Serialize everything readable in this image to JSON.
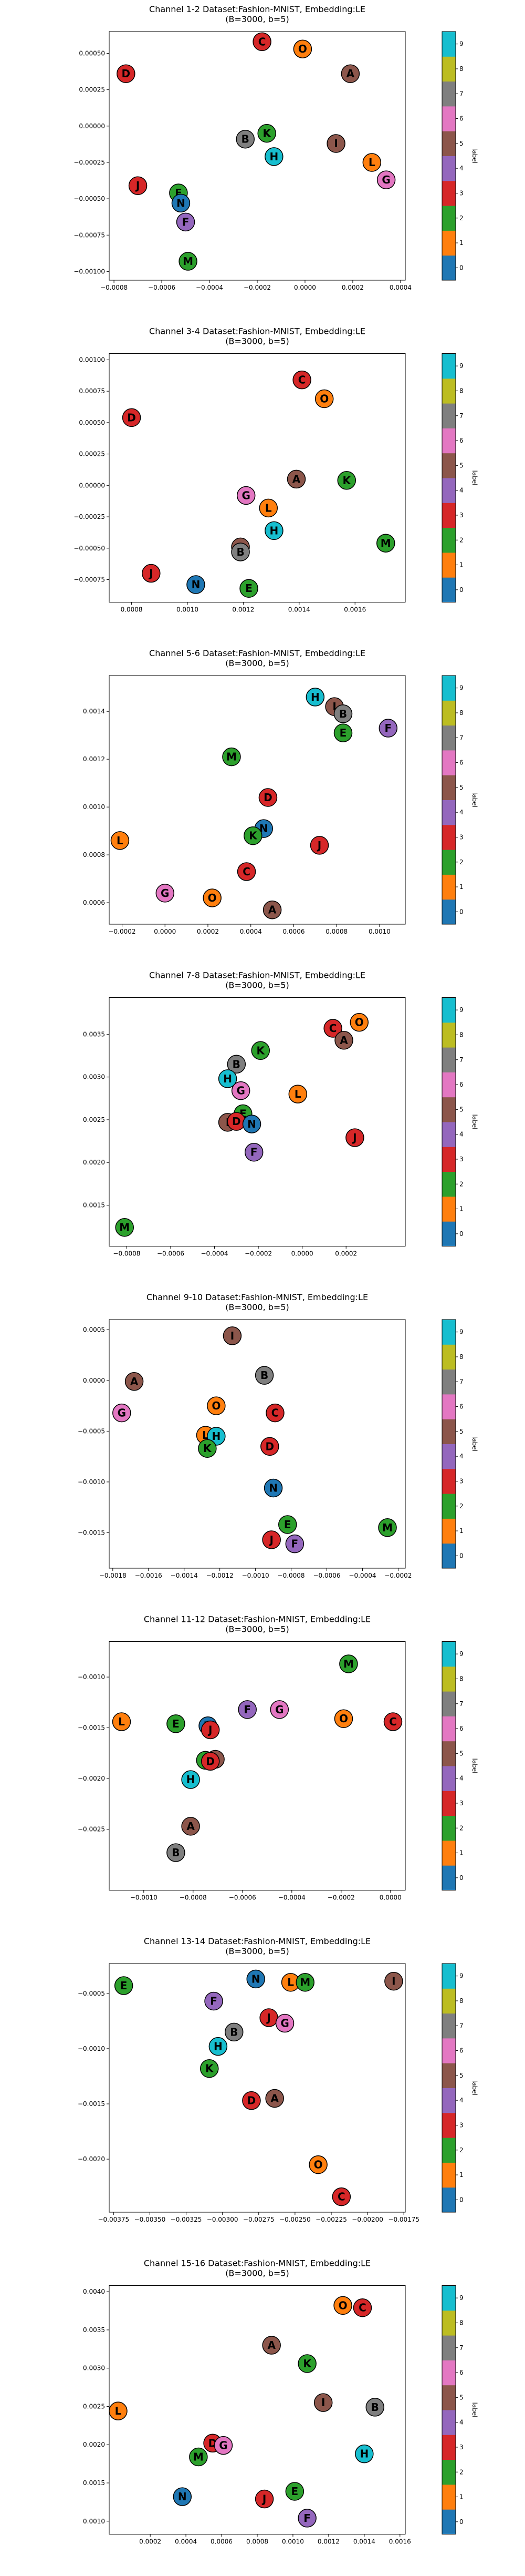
{
  "colormap": [
    "#1f77b4",
    "#ff7f0e",
    "#2ca02c",
    "#d62728",
    "#9467bd",
    "#8c564b",
    "#e377c2",
    "#7f7f7f",
    "#bcbd22",
    "#17becf"
  ],
  "colorbar": {
    "label": "label",
    "ticks": [
      "0",
      "1",
      "2",
      "3",
      "4",
      "5",
      "6",
      "7",
      "8",
      "9"
    ]
  },
  "letter_class": {
    "L": 1,
    "E": 2,
    "M": 2,
    "K": 2,
    "D": 3,
    "C": 3,
    "J": 3,
    "F": 4,
    "N": 0,
    "A": 5,
    "I": 5,
    "G": 6,
    "B": 7,
    "H": 9,
    "O": 1
  },
  "chart_data": [
    {
      "type": "scatter",
      "title": [
        "Channel 1-2 Dataset:Fashion-MNIST, Embedding:LE",
        "(B=3000, b=5)"
      ],
      "xlim": [
        -0.00082,
        0.00042
      ],
      "ylim": [
        -0.00106,
        0.00065
      ],
      "xticks": [
        -0.0008,
        -0.0006,
        -0.0004,
        -0.0002,
        0.0,
        0.0002,
        0.0004
      ],
      "xtick_labels": [
        "−0.0008",
        "−0.0006",
        "−0.0004",
        "−0.0002",
        "0.0000",
        "0.0002",
        "0.0004"
      ],
      "yticks": [
        -0.001,
        -0.00075,
        -0.0005,
        -0.00025,
        0.0,
        0.00025,
        0.0005
      ],
      "ytick_labels": [
        "−0.00100",
        "−0.00075",
        "−0.00050",
        "−0.00025",
        "0.00000",
        "0.00025",
        "0.00050"
      ],
      "points": [
        {
          "label": "C",
          "x": -0.00018,
          "y": 0.00058
        },
        {
          "label": "O",
          "x": -1e-05,
          "y": 0.00053
        },
        {
          "label": "A",
          "x": 0.00019,
          "y": 0.00036
        },
        {
          "label": "D",
          "x": -0.00075,
          "y": 0.00036
        },
        {
          "label": "B",
          "x": -0.00025,
          "y": -9e-05
        },
        {
          "label": "K",
          "x": -0.00016,
          "y": -5e-05
        },
        {
          "label": "I",
          "x": 0.00013,
          "y": -0.00012
        },
        {
          "label": "H",
          "x": -0.00013,
          "y": -0.00021
        },
        {
          "label": "L",
          "x": 0.00028,
          "y": -0.00025
        },
        {
          "label": "G",
          "x": 0.00034,
          "y": -0.00037
        },
        {
          "label": "J",
          "x": -0.0007,
          "y": -0.00041
        },
        {
          "label": "E",
          "x": -0.00053,
          "y": -0.00046
        },
        {
          "label": "N",
          "x": -0.00052,
          "y": -0.00053
        },
        {
          "label": "F",
          "x": -0.0005,
          "y": -0.00066
        },
        {
          "label": "M",
          "x": -0.00049,
          "y": -0.00093
        }
      ]
    },
    {
      "type": "scatter",
      "title": [
        "Channel 3-4 Dataset:Fashion-MNIST, Embedding:LE",
        "(B=3000, b=5)"
      ],
      "xlim": [
        0.00072,
        0.00178
      ],
      "ylim": [
        -0.00093,
        0.00105
      ],
      "xticks": [
        0.0008,
        0.001,
        0.0012,
        0.0014,
        0.0016
      ],
      "xtick_labels": [
        "0.0008",
        "0.0010",
        "0.0012",
        "0.0014",
        "0.0016"
      ],
      "yticks": [
        -0.00075,
        -0.0005,
        -0.00025,
        0.0,
        0.00025,
        0.0005,
        0.00075,
        0.001
      ],
      "ytick_labels": [
        "−0.00075",
        "−0.00050",
        "−0.00025",
        "0.00000",
        "0.00025",
        "0.00050",
        "0.00075",
        "0.00100"
      ],
      "points": [
        {
          "label": "C",
          "x": 0.00141,
          "y": 0.00084
        },
        {
          "label": "O",
          "x": 0.00149,
          "y": 0.00069
        },
        {
          "label": "D",
          "x": 0.0008,
          "y": 0.00054
        },
        {
          "label": "A",
          "x": 0.00139,
          "y": 5e-05
        },
        {
          "label": "K",
          "x": 0.00157,
          "y": 4e-05
        },
        {
          "label": "G",
          "x": 0.00121,
          "y": -8e-05
        },
        {
          "label": "L",
          "x": 0.00129,
          "y": -0.00018
        },
        {
          "label": "H",
          "x": 0.00131,
          "y": -0.00036
        },
        {
          "label": "M",
          "x": 0.00171,
          "y": -0.00046
        },
        {
          "label": "I",
          "x": 0.00119,
          "y": -0.00049
        },
        {
          "label": "B",
          "x": 0.00119,
          "y": -0.00053
        },
        {
          "label": "J",
          "x": 0.00087,
          "y": -0.0007
        },
        {
          "label": "N",
          "x": 0.00103,
          "y": -0.00079
        },
        {
          "label": "E",
          "x": 0.00122,
          "y": -0.00082
        }
      ]
    },
    {
      "type": "scatter",
      "title": [
        "Channel 5-6 Dataset:Fashion-MNIST, Embedding:LE",
        "(B=3000, b=5)"
      ],
      "xlim": [
        -0.00026,
        0.00112
      ],
      "ylim": [
        0.00051,
        0.00155
      ],
      "xticks": [
        -0.0002,
        0.0,
        0.0002,
        0.0004,
        0.0006,
        0.0008,
        0.001
      ],
      "xtick_labels": [
        "−0.0002",
        "0.0000",
        "0.0002",
        "0.0004",
        "0.0006",
        "0.0008",
        "0.0010"
      ],
      "yticks": [
        0.0006,
        0.0008,
        0.001,
        0.0012,
        0.0014
      ],
      "ytick_labels": [
        "0.0006",
        "0.0008",
        "0.0010",
        "0.0012",
        "0.0014"
      ],
      "points": [
        {
          "label": "H",
          "x": 0.0007,
          "y": 0.00146
        },
        {
          "label": "I",
          "x": 0.00079,
          "y": 0.00142
        },
        {
          "label": "B",
          "x": 0.00083,
          "y": 0.00139
        },
        {
          "label": "F",
          "x": 0.00104,
          "y": 0.00133
        },
        {
          "label": "E",
          "x": 0.00083,
          "y": 0.00131
        },
        {
          "label": "M",
          "x": 0.00031,
          "y": 0.00121
        },
        {
          "label": "D",
          "x": 0.00048,
          "y": 0.00104
        },
        {
          "label": "N",
          "x": 0.00046,
          "y": 0.00091
        },
        {
          "label": "K",
          "x": 0.00041,
          "y": 0.00088
        },
        {
          "label": "L",
          "x": -0.00021,
          "y": 0.00086
        },
        {
          "label": "J",
          "x": 0.00072,
          "y": 0.00084
        },
        {
          "label": "C",
          "x": 0.00038,
          "y": 0.00073
        },
        {
          "label": "G",
          "x": 0.0,
          "y": 0.00064
        },
        {
          "label": "O",
          "x": 0.00022,
          "y": 0.00062
        },
        {
          "label": "A",
          "x": 0.0005,
          "y": 0.00057
        }
      ]
    },
    {
      "type": "scatter",
      "title": [
        "Channel 7-8 Dataset:Fashion-MNIST, Embedding:LE",
        "(B=3000, b=5)"
      ],
      "xlim": [
        -0.00088,
        0.00047
      ],
      "ylim": [
        0.00102,
        0.00393
      ],
      "xticks": [
        -0.0008,
        -0.0006,
        -0.0004,
        -0.0002,
        0.0,
        0.0002
      ],
      "xtick_labels": [
        "−0.0008",
        "−0.0006",
        "−0.0004",
        "−0.0002",
        "0.0000",
        "0.0002"
      ],
      "yticks": [
        0.0015,
        0.002,
        0.0025,
        0.003,
        0.0035
      ],
      "ytick_labels": [
        "0.0015",
        "0.0020",
        "0.0025",
        "0.0030",
        "0.0035"
      ],
      "points": [
        {
          "label": "O",
          "x": 0.00026,
          "y": 0.00364
        },
        {
          "label": "C",
          "x": 0.00014,
          "y": 0.00357
        },
        {
          "label": "A",
          "x": 0.00019,
          "y": 0.00343
        },
        {
          "label": "K",
          "x": -0.00019,
          "y": 0.00331
        },
        {
          "label": "B",
          "x": -0.0003,
          "y": 0.00315
        },
        {
          "label": "H",
          "x": -0.00034,
          "y": 0.00298
        },
        {
          "label": "G",
          "x": -0.00028,
          "y": 0.00284
        },
        {
          "label": "L",
          "x": -2e-05,
          "y": 0.0028
        },
        {
          "label": "E",
          "x": -0.00027,
          "y": 0.00257
        },
        {
          "label": "I",
          "x": -0.00034,
          "y": 0.00247
        },
        {
          "label": "D",
          "x": -0.0003,
          "y": 0.00248
        },
        {
          "label": "N",
          "x": -0.00023,
          "y": 0.00245
        },
        {
          "label": "J",
          "x": 0.00024,
          "y": 0.00229
        },
        {
          "label": "F",
          "x": -0.00022,
          "y": 0.00212
        },
        {
          "label": "M",
          "x": -0.00081,
          "y": 0.00124
        }
      ]
    },
    {
      "type": "scatter",
      "title": [
        "Channel 9-10 Dataset:Fashion-MNIST, Embedding:LE",
        "(B=3000, b=5)"
      ],
      "xlim": [
        -0.00182,
        -0.00016
      ],
      "ylim": [
        -0.00185,
        0.0006
      ],
      "xticks": [
        -0.0018,
        -0.0016,
        -0.0014,
        -0.0012,
        -0.001,
        -0.0008,
        -0.0006,
        -0.0004,
        -0.0002
      ],
      "xtick_labels": [
        "−0.0018",
        "−0.0016",
        "−0.0014",
        "−0.0012",
        "−0.0010",
        "−0.0008",
        "−0.0006",
        "−0.0004",
        "−0.0002"
      ],
      "yticks": [
        -0.0015,
        -0.001,
        -0.0005,
        0.0,
        0.0005
      ],
      "ytick_labels": [
        "−0.0015",
        "−0.0010",
        "−0.0005",
        "0.0000",
        "0.0005"
      ],
      "points": [
        {
          "label": "I",
          "x": -0.00113,
          "y": 0.00044
        },
        {
          "label": "B",
          "x": -0.00095,
          "y": 5e-05
        },
        {
          "label": "A",
          "x": -0.00168,
          "y": -1e-05
        },
        {
          "label": "O",
          "x": -0.00122,
          "y": -0.00025
        },
        {
          "label": "G",
          "x": -0.00175,
          "y": -0.00032
        },
        {
          "label": "C",
          "x": -0.00089,
          "y": -0.00032
        },
        {
          "label": "L",
          "x": -0.00128,
          "y": -0.00054
        },
        {
          "label": "H",
          "x": -0.00122,
          "y": -0.00055
        },
        {
          "label": "D",
          "x": -0.00092,
          "y": -0.00065
        },
        {
          "label": "K",
          "x": -0.00127,
          "y": -0.00067
        },
        {
          "label": "N",
          "x": -0.0009,
          "y": -0.00106
        },
        {
          "label": "E",
          "x": -0.00082,
          "y": -0.00142
        },
        {
          "label": "M",
          "x": -0.00026,
          "y": -0.00145
        },
        {
          "label": "J",
          "x": -0.00091,
          "y": -0.00157
        },
        {
          "label": "F",
          "x": -0.00078,
          "y": -0.00161
        }
      ]
    },
    {
      "type": "scatter",
      "title": [
        "Channel 11-12 Dataset:Fashion-MNIST, Embedding:LE",
        "(B=3000, b=5)"
      ],
      "xlim": [
        -0.00114,
        6e-05
      ],
      "ylim": [
        -0.0031,
        -0.00065
      ],
      "xticks": [
        -0.001,
        -0.0008,
        -0.0006,
        -0.0004,
        -0.0002,
        0.0
      ],
      "xtick_labels": [
        "−0.0010",
        "−0.0008",
        "−0.0006",
        "−0.0004",
        "−0.0002",
        "0.0000"
      ],
      "yticks": [
        -0.0025,
        -0.002,
        -0.0015,
        -0.001
      ],
      "ytick_labels": [
        "−0.0025",
        "−0.0020",
        "−0.0015",
        "−0.0010"
      ],
      "points": [
        {
          "label": "M",
          "x": -0.00017,
          "y": -0.00087
        },
        {
          "label": "F",
          "x": -0.00058,
          "y": -0.00132
        },
        {
          "label": "G",
          "x": -0.00045,
          "y": -0.00132
        },
        {
          "label": "L",
          "x": -0.00109,
          "y": -0.00144
        },
        {
          "label": "O",
          "x": -0.00019,
          "y": -0.00141
        },
        {
          "label": "C",
          "x": 1e-05,
          "y": -0.00144
        },
        {
          "label": "E",
          "x": -0.00087,
          "y": -0.00146
        },
        {
          "label": "N",
          "x": -0.00074,
          "y": -0.00148
        },
        {
          "label": "J",
          "x": -0.00073,
          "y": -0.00152
        },
        {
          "label": "K",
          "x": -0.00075,
          "y": -0.00182
        },
        {
          "label": "I",
          "x": -0.00071,
          "y": -0.00181
        },
        {
          "label": "D",
          "x": -0.00073,
          "y": -0.00183
        },
        {
          "label": "H",
          "x": -0.00081,
          "y": -0.00201
        },
        {
          "label": "A",
          "x": -0.00081,
          "y": -0.00247
        },
        {
          "label": "B",
          "x": -0.00087,
          "y": -0.00273
        }
      ]
    },
    {
      "type": "scatter",
      "title": [
        "Channel 13-14 Dataset:Fashion-MNIST, Embedding:LE",
        "(B=3000, b=5)"
      ],
      "xlim": [
        -0.00378,
        -0.00174
      ],
      "ylim": [
        -0.00248,
        -0.00023
      ],
      "xticks": [
        -0.00375,
        -0.0035,
        -0.00325,
        -0.003,
        -0.00275,
        -0.0025,
        -0.00225,
        -0.002,
        -0.00175
      ],
      "xtick_labels": [
        "−0.00375",
        "−0.00350",
        "−0.00325",
        "−0.00300",
        "−0.00275",
        "−0.00250",
        "−0.00225",
        "−0.00200",
        "−0.00175"
      ],
      "yticks": [
        -0.002,
        -0.0015,
        -0.001,
        -0.0005
      ],
      "ytick_labels": [
        "−0.0020",
        "−0.0015",
        "−0.0010",
        "−0.0005"
      ],
      "points": [
        {
          "label": "N",
          "x": -0.00277,
          "y": -0.00037
        },
        {
          "label": "L",
          "x": -0.00253,
          "y": -0.0004
        },
        {
          "label": "M",
          "x": -0.00243,
          "y": -0.0004
        },
        {
          "label": "I",
          "x": -0.00182,
          "y": -0.00039
        },
        {
          "label": "E",
          "x": -0.00368,
          "y": -0.00043
        },
        {
          "label": "F",
          "x": -0.00306,
          "y": -0.00057
        },
        {
          "label": "J",
          "x": -0.00268,
          "y": -0.00072
        },
        {
          "label": "G",
          "x": -0.00257,
          "y": -0.00077
        },
        {
          "label": "B",
          "x": -0.00292,
          "y": -0.00085
        },
        {
          "label": "H",
          "x": -0.00303,
          "y": -0.00098
        },
        {
          "label": "K",
          "x": -0.00309,
          "y": -0.00118
        },
        {
          "label": "D",
          "x": -0.0028,
          "y": -0.00147
        },
        {
          "label": "A",
          "x": -0.00264,
          "y": -0.00145
        },
        {
          "label": "O",
          "x": -0.00234,
          "y": -0.00205
        },
        {
          "label": "C",
          "x": -0.00218,
          "y": -0.00234
        }
      ]
    },
    {
      "type": "scatter",
      "title": [
        "Channel 15-16 Dataset:Fashion-MNIST, Embedding:LE",
        "(B=3000, b=5)"
      ],
      "xlim": [
        -3e-05,
        0.00163
      ],
      "ylim": [
        0.00083,
        0.00408
      ],
      "xticks": [
        0.0002,
        0.0004,
        0.0006,
        0.0008,
        0.001,
        0.0012,
        0.0014,
        0.0016
      ],
      "xtick_labels": [
        "0.0002",
        "0.0004",
        "0.0006",
        "0.0008",
        "0.0010",
        "0.0012",
        "0.0014",
        "0.0016"
      ],
      "yticks": [
        0.001,
        0.0015,
        0.002,
        0.0025,
        0.003,
        0.0035,
        0.004
      ],
      "ytick_labels": [
        "0.0010",
        "0.0015",
        "0.0020",
        "0.0025",
        "0.0030",
        "0.0035",
        "0.0040"
      ],
      "points": [
        {
          "label": "O",
          "x": 0.00128,
          "y": 0.00382
        },
        {
          "label": "C",
          "x": 0.00139,
          "y": 0.00379
        },
        {
          "label": "A",
          "x": 0.00088,
          "y": 0.0033
        },
        {
          "label": "K",
          "x": 0.00108,
          "y": 0.00306
        },
        {
          "label": "L",
          "x": 2e-05,
          "y": 0.00244
        },
        {
          "label": "I",
          "x": 0.00117,
          "y": 0.00255
        },
        {
          "label": "B",
          "x": 0.00146,
          "y": 0.00249
        },
        {
          "label": "D",
          "x": 0.00055,
          "y": 0.00202
        },
        {
          "label": "G",
          "x": 0.00061,
          "y": 0.00199
        },
        {
          "label": "M",
          "x": 0.00047,
          "y": 0.00184
        },
        {
          "label": "H",
          "x": 0.0014,
          "y": 0.00188
        },
        {
          "label": "E",
          "x": 0.00101,
          "y": 0.00139
        },
        {
          "label": "N",
          "x": 0.00038,
          "y": 0.00132
        },
        {
          "label": "J",
          "x": 0.00084,
          "y": 0.00129
        },
        {
          "label": "F",
          "x": 0.00108,
          "y": 0.00104
        }
      ]
    }
  ]
}
